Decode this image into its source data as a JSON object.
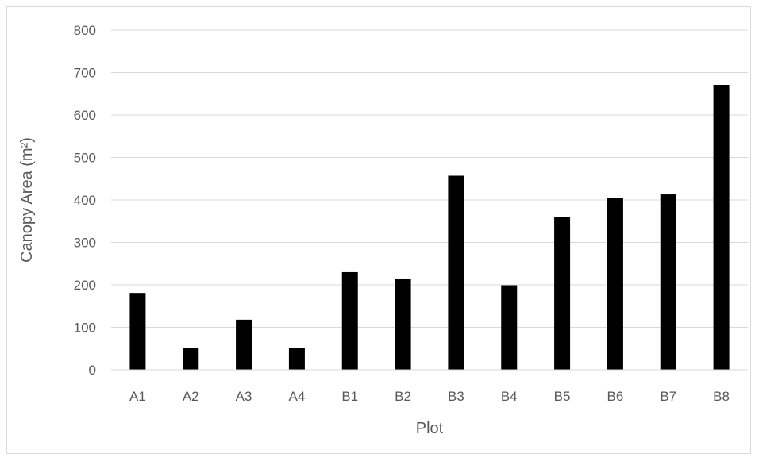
{
  "chart_data": {
    "type": "bar",
    "title": "",
    "xlabel": "Plot",
    "ylabel": "Canopy Area (m²)",
    "categories": [
      "A1",
      "A2",
      "A3",
      "A4",
      "B1",
      "B2",
      "B3",
      "B4",
      "B5",
      "B6",
      "B7",
      "B8"
    ],
    "series": [
      {
        "values": [
          181,
          51,
          118,
          52,
          230,
          215,
          457,
          199,
          359,
          405,
          413,
          671
        ]
      }
    ],
    "ylim": [
      0,
      800
    ],
    "yticks": [
      "0",
      "100",
      "200",
      "300",
      "400",
      "500",
      "600",
      "700",
      "800"
    ],
    "grid": true,
    "legend": "none",
    "colors": {
      "bar": "#000000",
      "grid": "#d9d9d9",
      "text": "#595959",
      "frame": "#d9d9d9"
    }
  }
}
